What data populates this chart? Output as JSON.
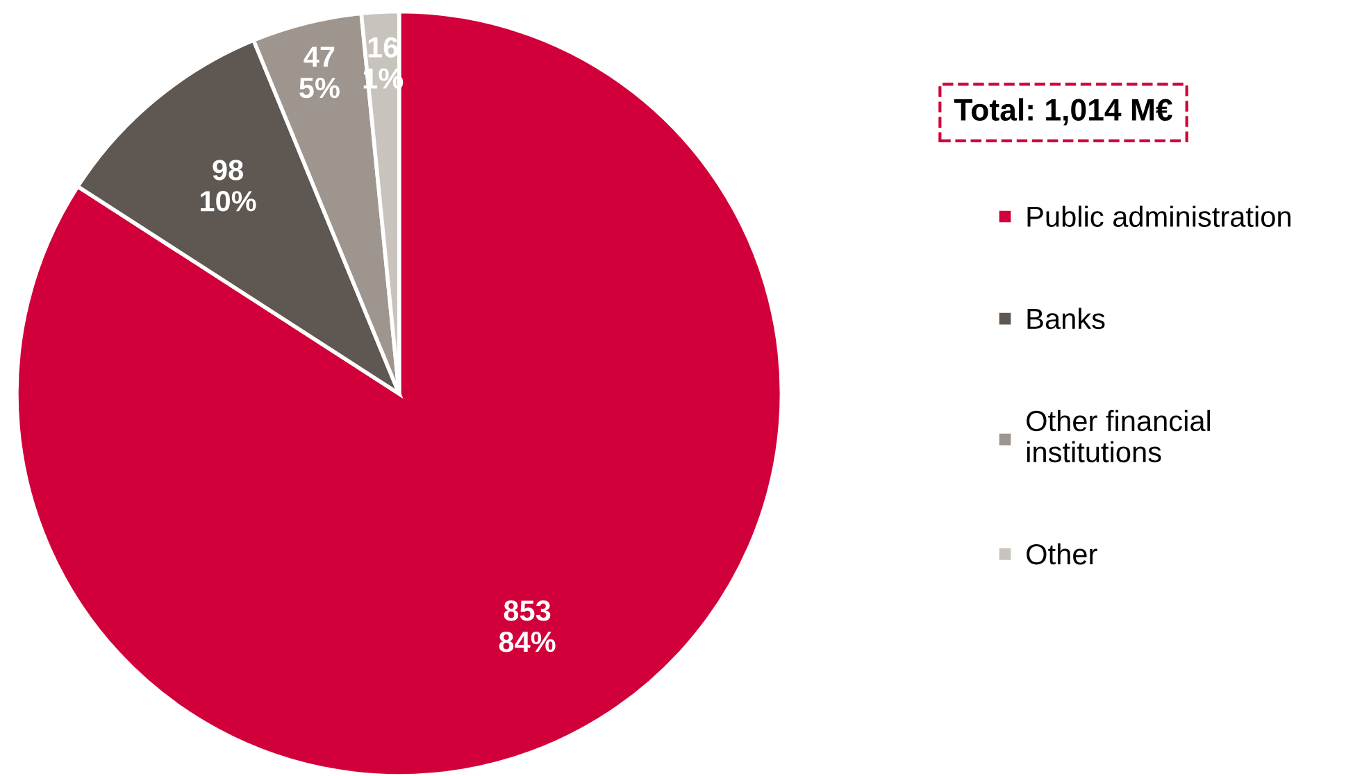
{
  "chart_data": {
    "type": "pie",
    "categories": [
      "Public administration",
      "Banks",
      "Other financial institutions",
      "Other"
    ],
    "values": [
      853,
      98,
      47,
      16
    ],
    "colors": [
      "#d1003a",
      "#5f5751",
      "#9d958e",
      "#c9c3bd"
    ],
    "value_labels": [
      "853\n84%",
      "98\n10%",
      "47\n5%",
      "16\n1%"
    ],
    "annotations": [
      "Total: 1,014 M€"
    ],
    "legend": "right"
  }
}
